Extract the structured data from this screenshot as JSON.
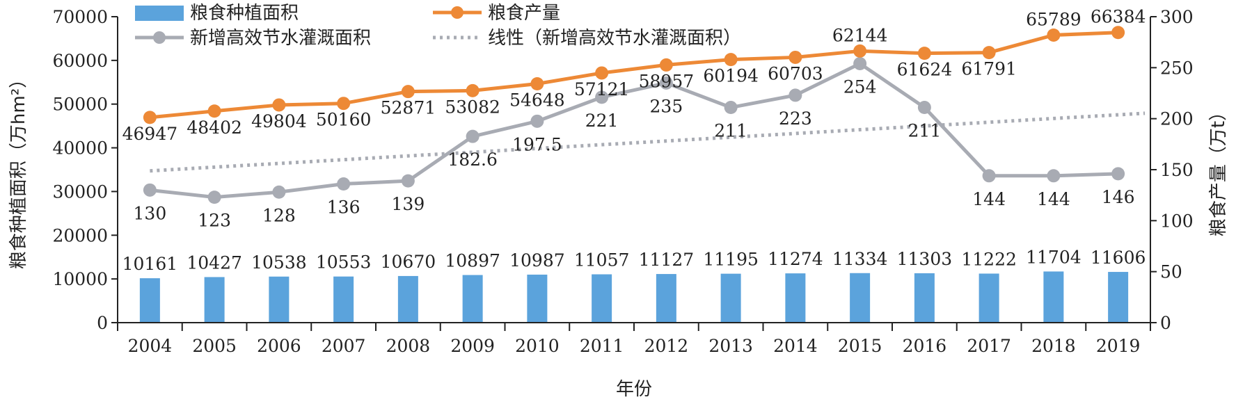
{
  "chart_data": {
    "type": "bar",
    "categories": [
      "2004",
      "2005",
      "2006",
      "2007",
      "2008",
      "2009",
      "2010",
      "2011",
      "2012",
      "2013",
      "2014",
      "2015",
      "2016",
      "2017",
      "2018",
      "2019"
    ],
    "xlabel": "年份",
    "ylabel_left": "粮食种植面积（万hm²）",
    "ylabel_right": "粮食产量（万t）",
    "ylim_left": [
      0,
      70000
    ],
    "ylim_right": [
      0,
      300
    ],
    "yticks_left": [
      "0",
      "10000",
      "20000",
      "30000",
      "40000",
      "50000",
      "60000",
      "70000"
    ],
    "yticks_right": [
      "0",
      "50",
      "100",
      "150",
      "200",
      "250",
      "300"
    ],
    "grid": false,
    "legend_position": "top",
    "series": [
      {
        "name": "粮食种植面积",
        "type": "bar",
        "axis": "left",
        "color": "#5BA3DC",
        "values": [
          10161,
          10427,
          10538,
          10553,
          10670,
          10897,
          10987,
          11057,
          11127,
          11195,
          11274,
          11334,
          11303,
          11222,
          11704,
          11606
        ],
        "labels": [
          "10161",
          "10427",
          "10538",
          "10553",
          "10670",
          "10897",
          "10987",
          "11057",
          "11127",
          "11195",
          "11274",
          "11334",
          "11303",
          "11222",
          "11704",
          "11606"
        ]
      },
      {
        "name": "粮食产量",
        "type": "line",
        "axis": "left",
        "color": "#ED8936",
        "values": [
          46947,
          48402,
          49804,
          50160,
          52871,
          53082,
          54648,
          57121,
          58957,
          60194,
          60703,
          62144,
          61624,
          61791,
          65789,
          66384
        ],
        "labels": [
          "46947",
          "48402",
          "49804",
          "50160",
          "52871",
          "53082",
          "54648",
          "57121",
          "58957",
          "60194",
          "60703",
          "62144",
          "61624",
          "61791",
          "65789",
          "66384"
        ]
      },
      {
        "name": "新增高效节水灌溉面积",
        "type": "line",
        "axis": "right",
        "color": "#A8ABB3",
        "values": [
          130,
          123,
          128,
          136,
          139,
          182.6,
          197.5,
          221,
          235,
          211,
          223,
          254,
          211,
          144,
          144,
          146
        ],
        "labels": [
          "130",
          "123",
          "128",
          "136",
          "139",
          "182.6",
          "197.5",
          "221",
          "235",
          "211",
          "223",
          "254",
          "211",
          "144",
          "144",
          "146"
        ]
      },
      {
        "name": "线性（新增高效节水灌溉面积）",
        "type": "trendline",
        "axis": "right",
        "color": "#A8ABB3",
        "values": [
          148.8,
          152.5,
          156.1,
          159.8,
          163.5,
          167.1,
          170.8,
          174.5,
          178.1,
          181.8,
          185.5,
          189.2,
          192.8,
          196.5,
          200.2,
          203.8
        ]
      }
    ]
  }
}
